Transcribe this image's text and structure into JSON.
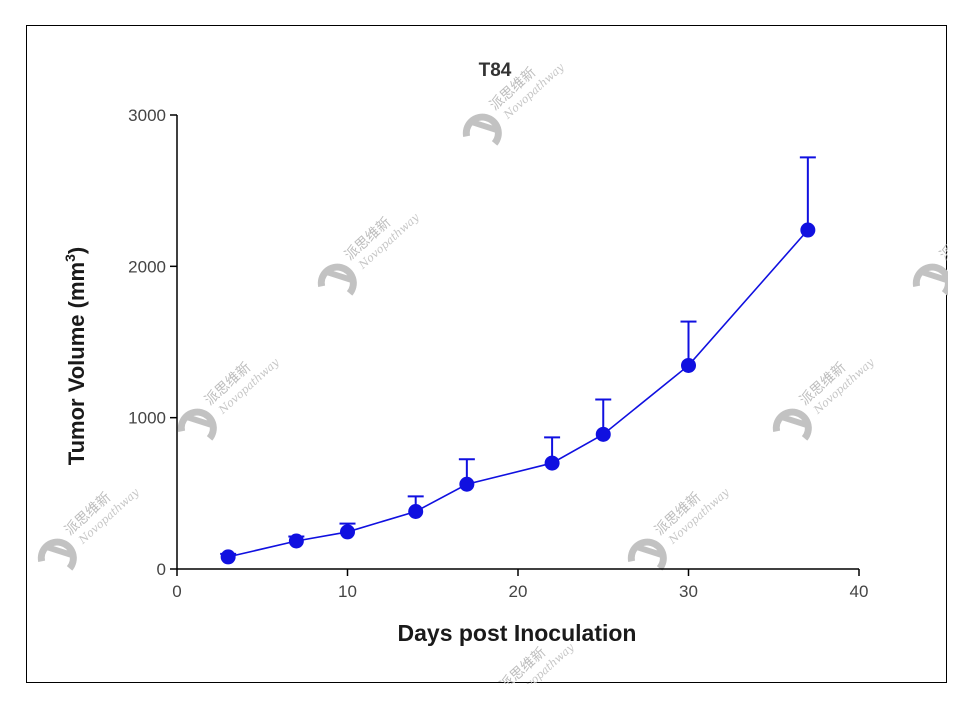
{
  "chart_data": {
    "type": "line",
    "title": "T84",
    "xlabel": "Days post Inoculation",
    "ylabel": "Tumor Volume (mm",
    "ylabel_sup": "3",
    "ylabel_close": ")",
    "xlim": [
      0,
      40
    ],
    "ylim": [
      0,
      3000
    ],
    "xticks": [
      0,
      10,
      20,
      30,
      40
    ],
    "yticks": [
      0,
      1000,
      2000,
      3000
    ],
    "grid": false,
    "color": "#1010e0",
    "series": [
      {
        "x": [
          3,
          7,
          10,
          14,
          17,
          22,
          25,
          30,
          37
        ],
        "y": [
          80,
          185,
          245,
          380,
          560,
          700,
          890,
          1345,
          2240
        ],
        "error_upper": [
          20,
          30,
          55,
          100,
          165,
          170,
          230,
          290,
          480
        ]
      }
    ]
  },
  "watermark": {
    "text": "派思维新",
    "subtext": "Novopathway",
    "color": "#c8c8c8"
  }
}
